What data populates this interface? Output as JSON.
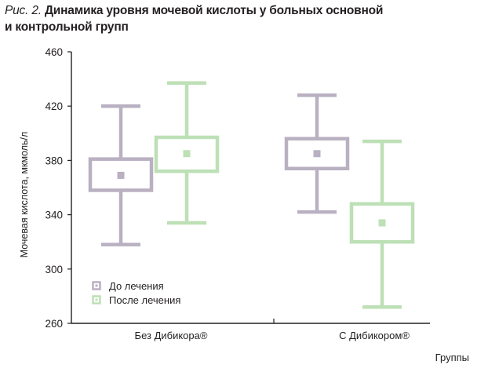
{
  "caption": {
    "fig_label": "Рис. 2.",
    "line1": "Динамика уровня мочевой кислоты у  больных основной",
    "line2": "и контрольной групп"
  },
  "colors": {
    "before": "#b9b0c2",
    "after": "#bde0b6",
    "axis": "#231f20"
  },
  "chart_data": {
    "type": "boxplot",
    "title": "Динамика уровня мочевой кислоты у  больных основной и контрольной групп",
    "ylabel": "Мочевая кислота, мкмоль/л",
    "xlabel": "Группы",
    "ylim": [
      260,
      460
    ],
    "yticks": [
      260,
      300,
      340,
      380,
      420,
      460
    ],
    "categories": [
      "Без Дибикора®",
      "С Дибикором®"
    ],
    "legend_position": "bottom-left inside plot",
    "grid": false,
    "series": [
      {
        "name": "До лечения",
        "color": "#b9b0c2",
        "boxes": [
          {
            "min": 318,
            "q1": 358,
            "median": 369,
            "q3": 381,
            "max": 420
          },
          {
            "min": 342,
            "q1": 374,
            "median": 385,
            "q3": 396,
            "max": 428
          }
        ]
      },
      {
        "name": "После лечения",
        "color": "#bde0b6",
        "boxes": [
          {
            "min": 334,
            "q1": 372,
            "median": 385,
            "q3": 397,
            "max": 437
          },
          {
            "min": 272,
            "q1": 320,
            "median": 334,
            "q3": 348,
            "max": 394
          }
        ]
      }
    ]
  }
}
